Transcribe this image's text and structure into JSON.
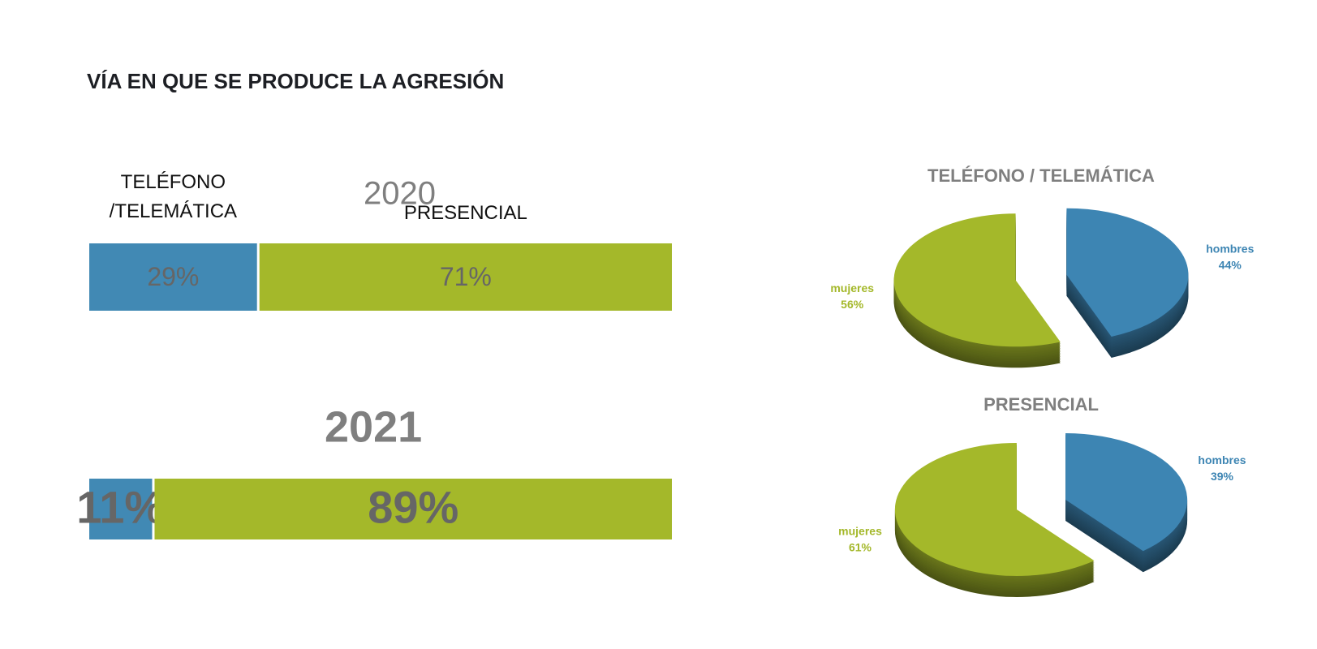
{
  "title": "VÍA EN QUE SE PRODUCE LA AGRESIÓN",
  "chart_data": [
    {
      "type": "bar",
      "orientation": "horizontal",
      "stacked": true,
      "title": "2020",
      "xlim": [
        0,
        100
      ],
      "series": [
        {
          "name": "TELÉFONO\n/TELEMÁTICA",
          "color": "#4189b4",
          "values": [
            29
          ],
          "value_labels": [
            "29%"
          ]
        },
        {
          "name": "PRESENCIAL",
          "color": "#a4b82a",
          "values": [
            71
          ],
          "value_labels": [
            "71%"
          ]
        }
      ]
    },
    {
      "type": "bar",
      "orientation": "horizontal",
      "stacked": true,
      "title": "2021",
      "xlim": [
        0,
        100
      ],
      "series": [
        {
          "color": "#4189b4",
          "values": [
            11
          ],
          "value_labels": [
            "11%"
          ]
        },
        {
          "color": "#a4b82a",
          "values": [
            89
          ],
          "value_labels": [
            "89%"
          ]
        }
      ]
    },
    {
      "type": "pie",
      "title": "TELÉFONO / TELEMÁTICA",
      "categories": [
        "hombres",
        "mujeres"
      ],
      "values": [
        44,
        56
      ],
      "value_labels": [
        "44%",
        "56%"
      ],
      "colors": [
        "#3d85b3",
        "#a4b82a"
      ]
    },
    {
      "type": "pie",
      "title": "PRESENCIAL",
      "categories": [
        "hombres",
        "mujeres"
      ],
      "values": [
        39,
        61
      ],
      "value_labels": [
        "39%",
        "61%"
      ],
      "colors": [
        "#3d85b3",
        "#a4b82a"
      ]
    }
  ]
}
